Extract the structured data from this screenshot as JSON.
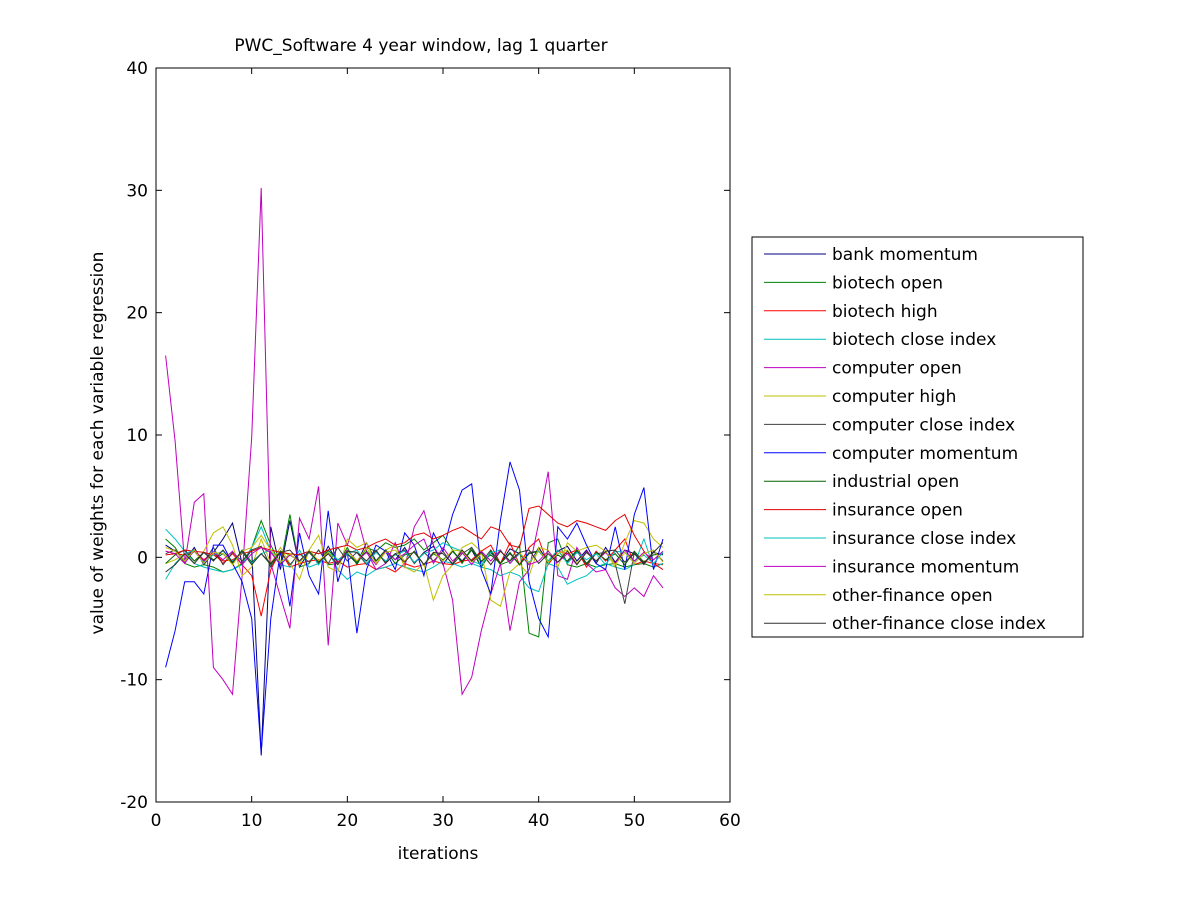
{
  "chart_data": {
    "type": "line",
    "title": "PWC_Software 4 year window, lag 1 quarter",
    "xlabel": "iterations",
    "ylabel": "value of weights for each variable regression",
    "xlim": [
      0,
      60
    ],
    "ylim": [
      -20,
      40
    ],
    "xticks": [
      0,
      10,
      20,
      30,
      40,
      50,
      60
    ],
    "yticks": [
      -20,
      -10,
      0,
      10,
      20,
      30,
      40
    ],
    "xtick_labels": [
      "0",
      "10",
      "20",
      "30",
      "40",
      "50",
      "60"
    ],
    "ytick_labels": [
      "-20",
      "-10",
      "0",
      "10",
      "20",
      "30",
      "40"
    ],
    "grid": false,
    "legend_position": "outside-right",
    "x": [
      1,
      2,
      3,
      4,
      5,
      6,
      7,
      8,
      9,
      10,
      11,
      12,
      13,
      14,
      15,
      16,
      17,
      18,
      19,
      20,
      21,
      22,
      23,
      24,
      25,
      26,
      27,
      28,
      29,
      30,
      31,
      32,
      33,
      34,
      35,
      36,
      37,
      38,
      39,
      40,
      41,
      42,
      43,
      44,
      45,
      46,
      47,
      48,
      49,
      50,
      51,
      52,
      53
    ],
    "series": [
      {
        "name": "bank momentum",
        "color": "#000080",
        "values": [
          1.0,
          0.5,
          -0.3,
          0.8,
          -0.6,
          0.4,
          1.5,
          2.8,
          -0.5,
          0.6,
          -16.2,
          2.5,
          -1.0,
          3.0,
          -0.8,
          0.5,
          -0.6,
          0.9,
          -0.4,
          0.3,
          -0.5,
          1.2,
          -0.3,
          0.6,
          -0.2,
          0.8,
          -0.5,
          0.4,
          0.9,
          -0.6,
          0.5,
          -0.3,
          0.6,
          -0.8,
          0.4,
          -0.5,
          0.7,
          0.3,
          -0.6,
          0.8,
          -0.4,
          0.5,
          0.9,
          -0.3,
          0.6,
          -0.5,
          0.8,
          -0.4,
          0.6,
          0.3,
          -0.5,
          0.4,
          0.2
        ]
      },
      {
        "name": "biotech open",
        "color": "#008000",
        "values": [
          1.5,
          0.8,
          -0.5,
          -0.8,
          -0.6,
          -0.8,
          -1.2,
          -1.0,
          -0.5,
          0.8,
          3.0,
          1.0,
          -0.6,
          3.5,
          -0.8,
          -0.5,
          0.6,
          -0.6,
          -0.5,
          0.8,
          -0.6,
          0.8,
          0.5,
          1.2,
          0.8,
          1.0,
          1.5,
          0.6,
          1.2,
          1.8,
          0.6,
          -0.5,
          0.8,
          -0.8,
          0.5,
          -0.6,
          -0.3,
          1.0,
          -6.2,
          -6.5,
          1.2,
          1.5,
          -0.6,
          -0.8,
          -0.5,
          -0.8,
          -0.6,
          -0.5,
          -0.8,
          -0.6,
          -0.5,
          -0.8,
          -0.5
        ]
      },
      {
        "name": "biotech high",
        "color": "#ff0000",
        "values": [
          0.5,
          0.3,
          0.2,
          0.6,
          -0.2,
          0.4,
          -0.5,
          0.3,
          -0.6,
          -1.5,
          -4.8,
          -1.0,
          0.5,
          -0.8,
          -0.5,
          -0.3,
          -0.2,
          -0.5,
          -0.3,
          -0.8,
          -0.6,
          -0.5,
          -1.0,
          -0.8,
          -1.2,
          -0.5,
          -0.8,
          -0.6,
          -0.3,
          -0.5,
          -0.6,
          -0.3,
          -0.2,
          0.5,
          1.0,
          -0.5,
          1.2,
          -0.6,
          0.8,
          1.5,
          -0.6,
          0.5,
          0.3,
          0.6,
          -0.8,
          0.5,
          -0.3,
          0.6,
          1.5,
          -0.6,
          -0.3,
          -0.5,
          -0.6
        ]
      },
      {
        "name": "biotech close index",
        "color": "#00bfbf",
        "values": [
          2.3,
          1.5,
          0.5,
          -0.5,
          -0.8,
          -1.0,
          -1.2,
          -1.0,
          -0.6,
          0.8,
          2.5,
          0.5,
          -0.6,
          -0.8,
          0.6,
          -0.8,
          -0.5,
          0.5,
          -1.0,
          -1.8,
          -1.2,
          -1.5,
          -1.0,
          -0.8,
          -0.5,
          -0.8,
          -1.0,
          -1.2,
          -0.8,
          -0.3,
          -0.5,
          -0.8,
          -0.5,
          -0.8,
          -1.0,
          -1.5,
          -1.2,
          -1.5,
          -2.5,
          -2.8,
          -0.5,
          -0.8,
          -2.2,
          -1.8,
          -1.5,
          -0.8,
          -0.5,
          -0.8,
          -1.0,
          -0.6,
          1.5,
          -0.8,
          -0.5
        ]
      },
      {
        "name": "computer open",
        "color": "#bf00bf",
        "values": [
          16.5,
          9.5,
          -0.5,
          4.5,
          5.2,
          -9.0,
          -10.0,
          -11.2,
          -1.5,
          9.8,
          30.2,
          -0.5,
          -3.2,
          -5.8,
          3.2,
          1.5,
          5.8,
          -7.2,
          2.8,
          1.0,
          3.5,
          0.5,
          -1.0,
          -0.5,
          1.2,
          -0.8,
          2.5,
          3.8,
          1.0,
          -0.5,
          -3.5,
          -11.2,
          -9.8,
          -6.0,
          -3.0,
          -0.5,
          -6.0,
          -2.0,
          -1.0,
          2.8,
          7.0,
          -1.5,
          -1.8,
          0.8,
          -0.5,
          -1.2,
          -1.0,
          -2.5,
          -3.2,
          -2.5,
          -3.2,
          -1.5,
          -2.5
        ]
      },
      {
        "name": "computer high",
        "color": "#bfbf00",
        "values": [
          -0.5,
          -0.2,
          0.3,
          -0.5,
          0.5,
          2.0,
          2.5,
          1.0,
          -1.5,
          -0.8,
          1.5,
          -0.5,
          0.8,
          -0.5,
          -1.8,
          0.6,
          1.8,
          -0.8,
          -1.2,
          1.5,
          0.8,
          1.2,
          -0.5,
          0.6,
          1.0,
          -0.8,
          -1.2,
          -0.5,
          -3.5,
          -1.5,
          -0.6,
          0.8,
          1.2,
          0.5,
          -3.5,
          -4.0,
          -1.2,
          -0.5,
          -1.5,
          0.8,
          0.6,
          -0.8,
          1.2,
          0.5,
          0.8,
          1.0,
          0.5,
          -0.8,
          1.2,
          3.0,
          2.8,
          1.5,
          0.8
        ]
      },
      {
        "name": "computer close index",
        "color": "#404040",
        "values": [
          0.3,
          0.6,
          -0.3,
          0.5,
          -0.4,
          0.8,
          -0.6,
          0.4,
          -0.3,
          0.6,
          0.9,
          -0.8,
          0.5,
          -0.6,
          0.3,
          -0.4,
          0.6,
          -0.5,
          0.8,
          -0.3,
          0.4,
          -0.6,
          0.5,
          -0.4,
          0.3,
          0.6,
          -0.5,
          0.4,
          -0.3,
          0.5,
          -0.6,
          0.3,
          0.8,
          -0.4,
          0.6,
          -0.5,
          0.3,
          -0.6,
          0.4,
          0.5,
          -0.3,
          0.6,
          -0.4,
          0.5,
          -0.6,
          0.3,
          0.4,
          -0.5,
          -3.8,
          0.4,
          -0.6,
          0.5,
          -0.3
        ]
      },
      {
        "name": "computer momentum",
        "color": "#0000ff",
        "values": [
          -9.0,
          -6.0,
          -2.0,
          -2.0,
          -3.0,
          1.0,
          1.0,
          -0.5,
          -2.0,
          -5.0,
          -16.0,
          -5.0,
          0.5,
          -4.0,
          2.0,
          -1.5,
          -3.0,
          3.8,
          -2.0,
          0.5,
          -6.2,
          -1.0,
          1.0,
          0.5,
          -1.0,
          2.0,
          1.0,
          -1.5,
          2.0,
          0.5,
          3.5,
          5.5,
          6.0,
          -1.0,
          -3.0,
          3.0,
          7.8,
          5.5,
          -2.0,
          -5.0,
          -6.5,
          2.5,
          1.5,
          2.8,
          1.0,
          -0.5,
          -1.0,
          2.5,
          -1.0,
          3.5,
          5.7,
          -1.0,
          1.5
        ]
      },
      {
        "name": "industrial open",
        "color": "#006400",
        "values": [
          -0.5,
          0.2,
          0.6,
          -0.3,
          0.4,
          -0.2,
          0.3,
          -0.5,
          0.6,
          -0.4,
          0.3,
          -0.6,
          0.5,
          0.2,
          -0.3,
          0.4,
          -0.5,
          0.6,
          -0.2,
          0.3,
          -0.4,
          0.5,
          -0.3,
          0.6,
          -0.5,
          0.2,
          0.4,
          -0.6,
          0.3,
          -0.2,
          0.5,
          -0.4,
          0.6,
          -0.3,
          0.2,
          -0.5,
          0.4,
          -0.6,
          0.3,
          0.5,
          -0.4,
          0.2,
          -0.3,
          0.6,
          -0.5,
          0.4,
          -0.2,
          0.3,
          -0.6,
          0.5,
          -0.4,
          0.2,
          0.3
        ]
      },
      {
        "name": "insurance open",
        "color": "#e00000",
        "values": [
          0.2,
          0.3,
          0.6,
          0.5,
          0.4,
          0.2,
          -0.3,
          -0.2,
          0.3,
          0.5,
          0.8,
          0.6,
          0.4,
          0.3,
          0.2,
          0.5,
          0.3,
          0.6,
          0.8,
          1.0,
          0.6,
          0.8,
          1.2,
          1.5,
          1.0,
          1.2,
          1.8,
          2.0,
          1.5,
          1.8,
          2.2,
          2.5,
          2.0,
          1.5,
          2.5,
          2.2,
          1.0,
          0.8,
          4.0,
          4.2,
          3.5,
          2.8,
          2.5,
          3.0,
          2.8,
          2.5,
          2.2,
          3.0,
          3.5,
          1.8,
          0.5,
          -0.5,
          -1.0
        ]
      },
      {
        "name": "insurance close index",
        "color": "#00c0c0",
        "values": [
          -1.8,
          -0.5,
          0.3,
          0.6,
          -0.4,
          0.2,
          0.5,
          -0.3,
          0.4,
          -0.5,
          0.3,
          0.6,
          -0.4,
          0.2,
          -0.3,
          0.5,
          -0.6,
          0.4,
          -0.2,
          0.3,
          0.6,
          -0.5,
          0.4,
          -0.3,
          0.2,
          0.5,
          -0.4,
          0.3,
          0.6,
          1.2,
          0.8,
          0.5,
          -0.3,
          -0.6,
          0.4,
          0.6,
          -0.5,
          0.3,
          -0.4,
          0.5,
          -0.3,
          0.6,
          -0.5,
          0.4,
          -0.2,
          0.3,
          -0.6,
          0.5,
          0.4,
          -0.3,
          0.2,
          -0.5,
          0.4
        ]
      },
      {
        "name": "insurance momentum",
        "color": "#c000c0",
        "values": [
          0.5,
          0.3,
          -0.5,
          0.6,
          -0.3,
          0.4,
          -0.2,
          0.5,
          -0.6,
          0.3,
          0.8,
          0.4,
          -0.6,
          0.2,
          -0.3,
          0.5,
          -0.4,
          0.3,
          -0.5,
          0.6,
          -0.3,
          0.4,
          -0.6,
          0.5,
          -0.2,
          0.3,
          1.0,
          1.5,
          -0.5,
          0.8,
          -0.3,
          0.4,
          -0.6,
          0.5,
          -0.3,
          0.6,
          -0.5,
          0.4,
          -0.6,
          -0.3,
          0.5,
          -0.4,
          0.3,
          -0.6,
          0.5,
          -0.3,
          0.4,
          -0.5,
          0.6,
          -0.3,
          0.4,
          -0.2,
          0.5
        ]
      },
      {
        "name": "other-finance open",
        "color": "#c0c000",
        "values": [
          0.8,
          0.5,
          -0.3,
          0.6,
          -0.5,
          0.4,
          0.3,
          -0.6,
          0.5,
          0.8,
          1.8,
          0.6,
          -0.4,
          0.3,
          -0.5,
          0.6,
          -0.3,
          0.4,
          -0.6,
          0.5,
          -0.3,
          0.8,
          -0.5,
          0.4,
          0.6,
          -0.3,
          0.5,
          -0.6,
          0.4,
          -0.3,
          0.6,
          0.5,
          -0.4,
          0.3,
          -0.6,
          0.5,
          -0.3,
          0.4,
          -0.5,
          0.6,
          -0.4,
          0.3,
          0.6,
          -0.5,
          0.4,
          -0.3,
          0.5,
          -0.6,
          0.4,
          -0.5,
          0.3,
          0.6,
          -0.4
        ]
      },
      {
        "name": "other-finance close index",
        "color": "#303030",
        "values": [
          -1.2,
          -0.6,
          0.3,
          -0.5,
          0.4,
          -0.3,
          0.6,
          -0.4,
          0.5,
          -0.6,
          0.3,
          -0.5,
          0.4,
          0.6,
          -0.3,
          0.5,
          -0.4,
          0.3,
          -0.6,
          0.5,
          0.4,
          -0.3,
          0.6,
          -0.5,
          0.3,
          -0.4,
          0.5,
          -0.6,
          0.4,
          0.3,
          -0.5,
          0.6,
          -0.3,
          0.4,
          -0.6,
          0.5,
          -0.3,
          0.4,
          0.6,
          -0.5,
          0.3,
          -0.4,
          0.5,
          -0.6,
          0.4,
          -0.3,
          0.5,
          0.6,
          -0.4,
          0.3,
          -0.5,
          0.4,
          1.2
        ]
      }
    ]
  }
}
